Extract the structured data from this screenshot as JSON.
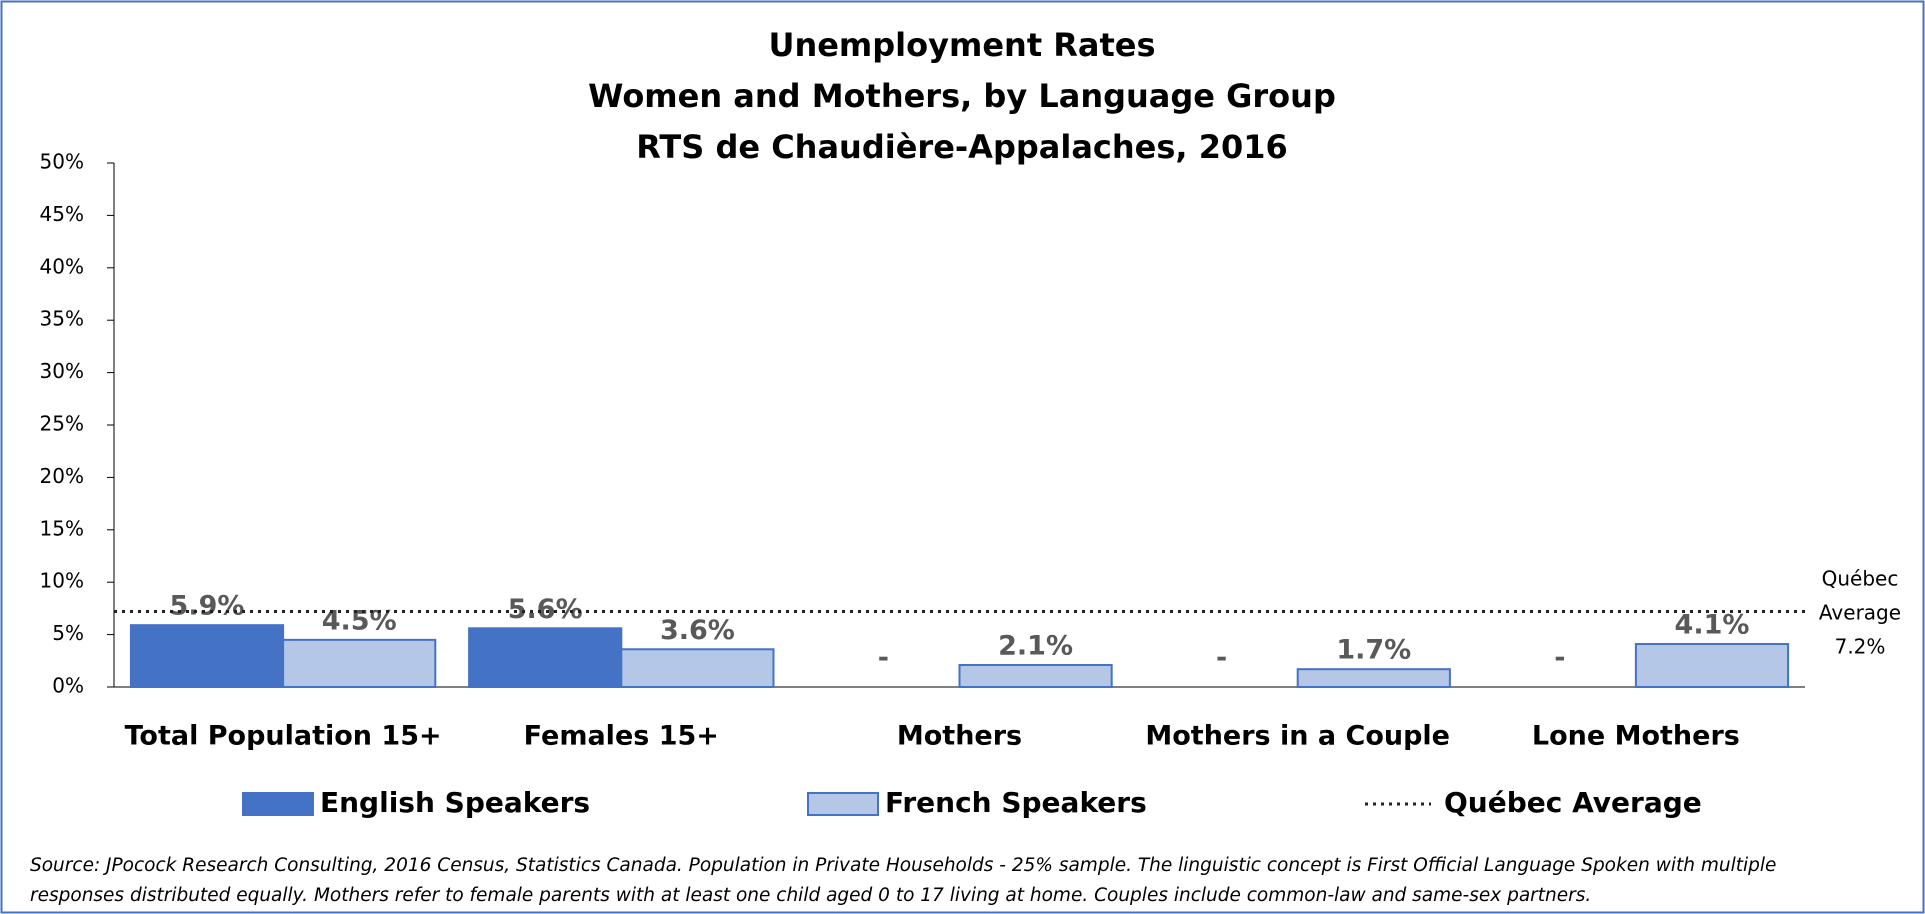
{
  "chart_data": {
    "type": "bar",
    "title": [
      "Unemployment Rates",
      "Women and Mothers, by Language Group",
      "RTS de Chaudière-Appalaches, 2016"
    ],
    "categories": [
      "Total Population 15+",
      "Females 15+",
      "Mothers",
      "Mothers in a Couple",
      "Lone Mothers"
    ],
    "series": [
      {
        "name": "English Speakers",
        "color": "#4472c4",
        "values": [
          5.9,
          5.6,
          null,
          null,
          null
        ],
        "value_labels": [
          "5.9%",
          "5.6%",
          "-",
          "-",
          "-"
        ]
      },
      {
        "name": "French Speakers",
        "color": "#b4c7e7",
        "values": [
          4.5,
          3.6,
          2.1,
          1.7,
          4.1
        ],
        "value_labels": [
          "4.5%",
          "3.6%",
          "2.1%",
          "1.7%",
          "4.1%"
        ]
      }
    ],
    "reference_line": {
      "name": "Québec Average",
      "value": 7.2,
      "label_lines": [
        "Québec",
        "Average",
        "7.2%"
      ]
    },
    "ylim": [
      0,
      50
    ],
    "yticks": [
      {
        "value": 0,
        "label": "0%"
      },
      {
        "value": 5,
        "label": "5%"
      },
      {
        "value": 10,
        "label": "10%"
      },
      {
        "value": 15,
        "label": "15%"
      },
      {
        "value": 20,
        "label": "20%"
      },
      {
        "value": 25,
        "label": "25%"
      },
      {
        "value": 30,
        "label": "30%"
      },
      {
        "value": 35,
        "label": "35%"
      },
      {
        "value": 40,
        "label": "40%"
      },
      {
        "value": 45,
        "label": "45%"
      },
      {
        "value": 50,
        "label": "50%"
      }
    ],
    "grid": false,
    "legend": "bottom",
    "source": [
      "Source: JPocock Research Consulting, 2016 Census, Statistics Canada. Population in Private Households - 25% sample. The linguistic concept is First Official Language Spoken with multiple",
      "responses distributed equally. Mothers refer to female parents with at least one child aged 0 to 17 living at home. Couples include common-law and same-sex partners."
    ]
  }
}
